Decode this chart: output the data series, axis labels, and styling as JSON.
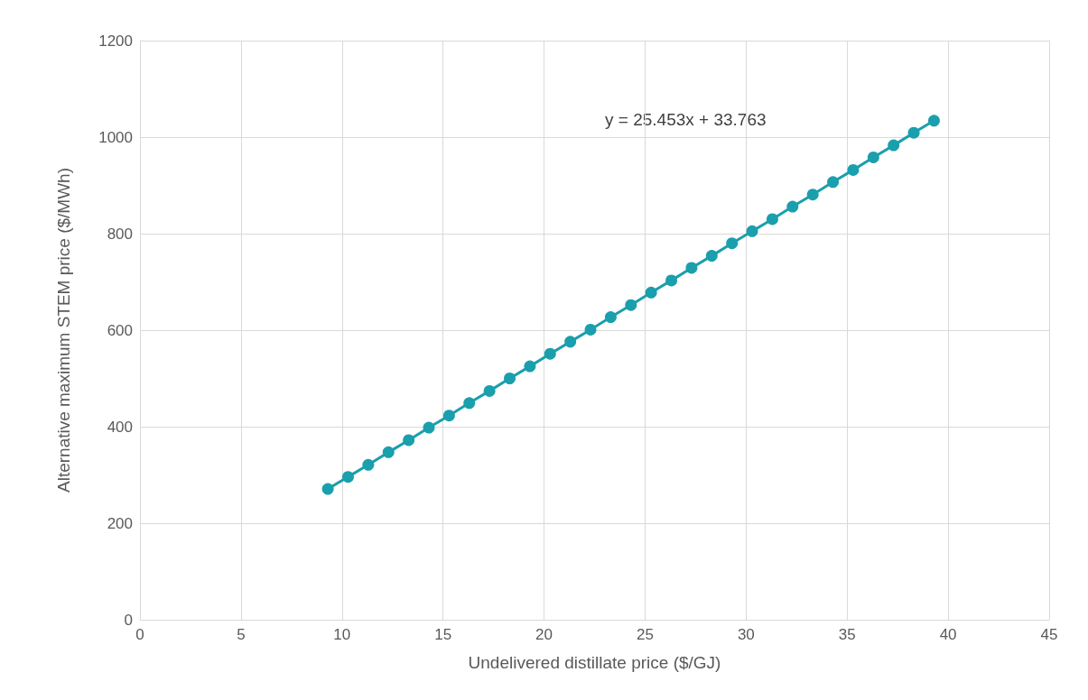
{
  "chart_data": {
    "type": "line",
    "xlabel": "Undelivered distillate price ($/GJ)",
    "ylabel": "Alternative maximum STEM price ($/MWh)",
    "x": [
      9.3,
      10.3,
      11.3,
      12.3,
      13.3,
      14.3,
      15.3,
      16.3,
      17.3,
      18.3,
      19.3,
      20.3,
      21.3,
      22.3,
      23.3,
      24.3,
      25.3,
      26.3,
      27.3,
      28.3,
      29.3,
      30.3,
      31.3,
      32.3,
      33.3,
      34.3,
      35.3,
      36.3,
      37.3,
      38.3,
      39.3
    ],
    "series": [
      {
        "color": "#1a9fad",
        "values": [
          271,
          296,
          321,
          347,
          372,
          398,
          423,
          449,
          474,
          500,
          525,
          551,
          576,
          601,
          627,
          652,
          678,
          703,
          729,
          754,
          780,
          805,
          830,
          856,
          881,
          907,
          932,
          958,
          983,
          1009,
          1034
        ]
      }
    ],
    "xlim": [
      0,
      45
    ],
    "xticks": [
      0,
      5,
      10,
      15,
      20,
      25,
      30,
      35,
      40,
      45
    ],
    "ylim": [
      0,
      1200
    ],
    "yticks": [
      0,
      200,
      400,
      600,
      800,
      1000,
      1200
    ],
    "grid": true,
    "marker": "circle",
    "line_style": "solid",
    "annotations": [
      "y = 25.453x + 33.763"
    ]
  }
}
